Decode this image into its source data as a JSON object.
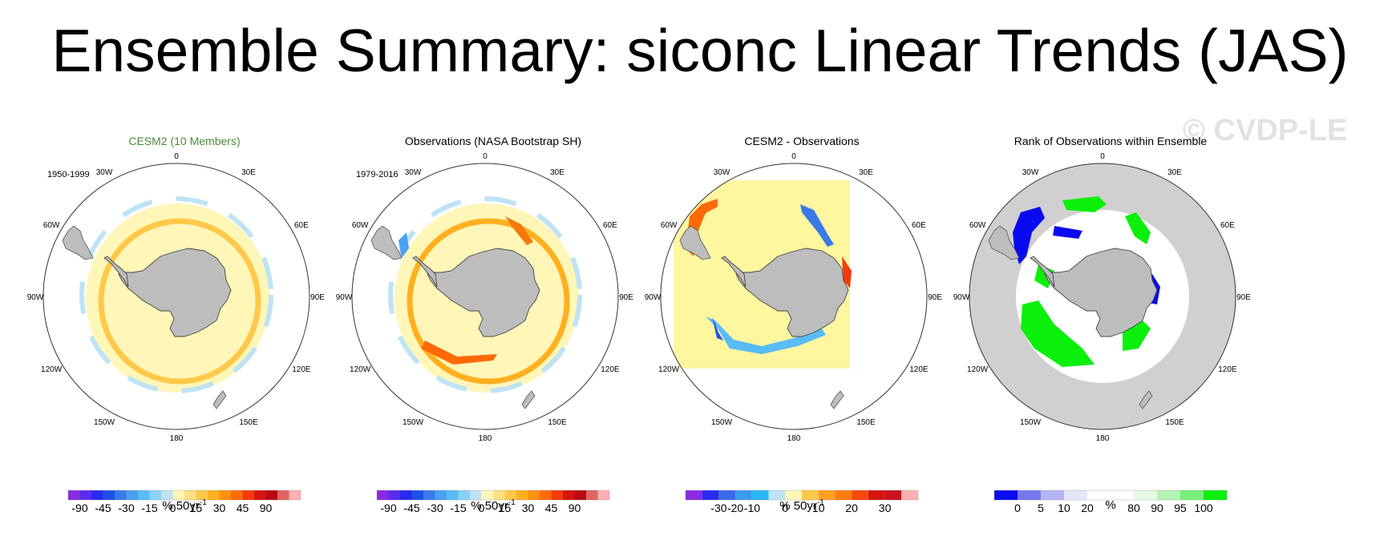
{
  "title": "Ensemble Summary: siconc Linear Trends (JAS)",
  "watermark": "© CVDP-LE",
  "panels": [
    {
      "title": "CESM2 (10 Members)",
      "title_color": "#4a8a3a",
      "period": "1950-1999",
      "lon_labels": [
        "0",
        "30E",
        "60E",
        "90E",
        "120E",
        "150E",
        "180",
        "150W",
        "120W",
        "90W",
        "60W",
        "30W"
      ],
      "colorbar": {
        "colors": [
          "#8a2be2",
          "#5a2cf0",
          "#2a2af0",
          "#2050e8",
          "#3a7ae8",
          "#4aa0f0",
          "#58bcf8",
          "#8ad2f8",
          "#bfe3f5",
          "#fff6b8",
          "#ffe082",
          "#ffc84a",
          "#ffb020",
          "#ff9010",
          "#ff6a08",
          "#f43a0a",
          "#d8140e",
          "#b80a14",
          "#e06464",
          "#ffb0b0"
        ],
        "tick_labels": [
          "-90",
          "-45",
          "-30",
          "-15",
          "0",
          "15",
          "30",
          "45",
          "90"
        ],
        "tick_boundaries": [
          1,
          3,
          5,
          7,
          9,
          11,
          13,
          15,
          17
        ]
      },
      "units": "% 50yr",
      "units_exp": "-1"
    },
    {
      "title": "Observations (NASA Bootstrap SH)",
      "title_color": "#000000",
      "period": "1979-2016",
      "lon_labels": [
        "0",
        "30E",
        "60E",
        "90E",
        "120E",
        "150E",
        "180",
        "150W",
        "120W",
        "90W",
        "60W",
        "30W"
      ],
      "colorbar": {
        "colors": [
          "#8a2be2",
          "#5a2cf0",
          "#2a2af0",
          "#2050e8",
          "#3a7ae8",
          "#4aa0f0",
          "#58bcf8",
          "#8ad2f8",
          "#bfe3f5",
          "#fff6b8",
          "#ffe082",
          "#ffc84a",
          "#ffb020",
          "#ff9010",
          "#ff6a08",
          "#f43a0a",
          "#d8140e",
          "#b80a14",
          "#e06464",
          "#ffb0b0"
        ],
        "tick_labels": [
          "-90",
          "-45",
          "-30",
          "-15",
          "0",
          "15",
          "30",
          "45",
          "90"
        ],
        "tick_boundaries": [
          1,
          3,
          5,
          7,
          9,
          11,
          13,
          15,
          17
        ]
      },
      "units": "% 50yr",
      "units_exp": "-1"
    },
    {
      "title": "CESM2 - Observations",
      "title_color": "#000000",
      "period": "",
      "lon_labels": [
        "0",
        "30E",
        "60E",
        "90E",
        "120E",
        "150E",
        "180",
        "150W",
        "120W",
        "90W",
        "60W",
        "30W"
      ],
      "colorbar": {
        "colors": [
          "#8a2be2",
          "#2a2af0",
          "#3a6ae8",
          "#3a9af0",
          "#28b8f8",
          "#bfe3f5",
          "#fff6b8",
          "#ffc84a",
          "#ffa020",
          "#ff7a10",
          "#f44a0a",
          "#d8140e",
          "#c8141e",
          "#ffb0b0"
        ],
        "tick_labels": [
          "-30",
          "-20",
          "-10",
          "0",
          "10",
          "20",
          "30"
        ],
        "tick_boundaries": [
          2,
          3,
          4,
          6,
          8,
          10,
          12
        ]
      },
      "units": "% 50yr",
      "units_exp": "-1"
    },
    {
      "title": "Rank of Observations within Ensemble",
      "title_color": "#000000",
      "period": "",
      "lon_labels": [
        "0",
        "30E",
        "60E",
        "90E",
        "120E",
        "150E",
        "180",
        "150W",
        "120W",
        "90W",
        "60W",
        "30W"
      ],
      "colorbar": {
        "colors": [
          "#0a0af0",
          "#7878f0",
          "#b4b4f4",
          "#e6e6fa",
          "#ffffff",
          "#ffffff",
          "#e6fae6",
          "#b4f4b4",
          "#78f078",
          "#0af00a"
        ],
        "tick_labels": [
          "0",
          "5",
          "10",
          "20",
          "80",
          "90",
          "95",
          "100"
        ],
        "tick_boundaries": [
          1,
          2,
          3,
          4,
          6,
          7,
          8,
          9
        ]
      },
      "units": "%",
      "units_exp": ""
    }
  ]
}
